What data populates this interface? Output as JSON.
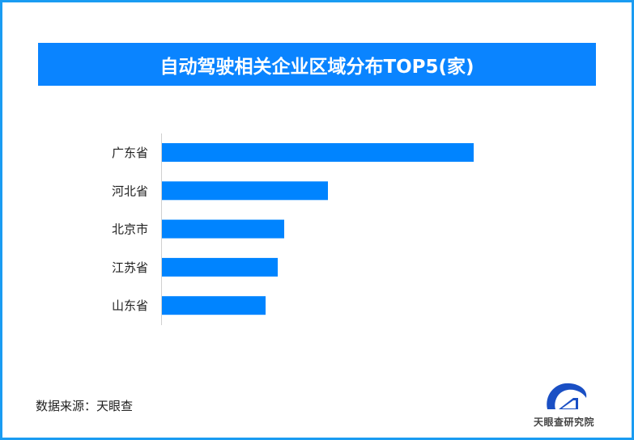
{
  "colors": {
    "frame": "#1a9cf2",
    "banner": "#0a84ff",
    "bar": "#0084ff",
    "axis": "#d0d0d0",
    "logo": "#1a4fc4"
  },
  "chart_data": {
    "type": "bar",
    "orientation": "horizontal",
    "title": "自动驾驶相关企业区域分布TOP5(家)",
    "categories": [
      "广东省",
      "河北省",
      "北京市",
      "江苏省",
      "山东省"
    ],
    "values": [
      385,
      205,
      151,
      143,
      128
    ],
    "xlim": [
      0,
      385
    ],
    "grid": false,
    "xlabel": "",
    "ylabel": ""
  },
  "footer": {
    "source": "数据来源：天眼查",
    "logo_text": "天眼查研究院"
  }
}
